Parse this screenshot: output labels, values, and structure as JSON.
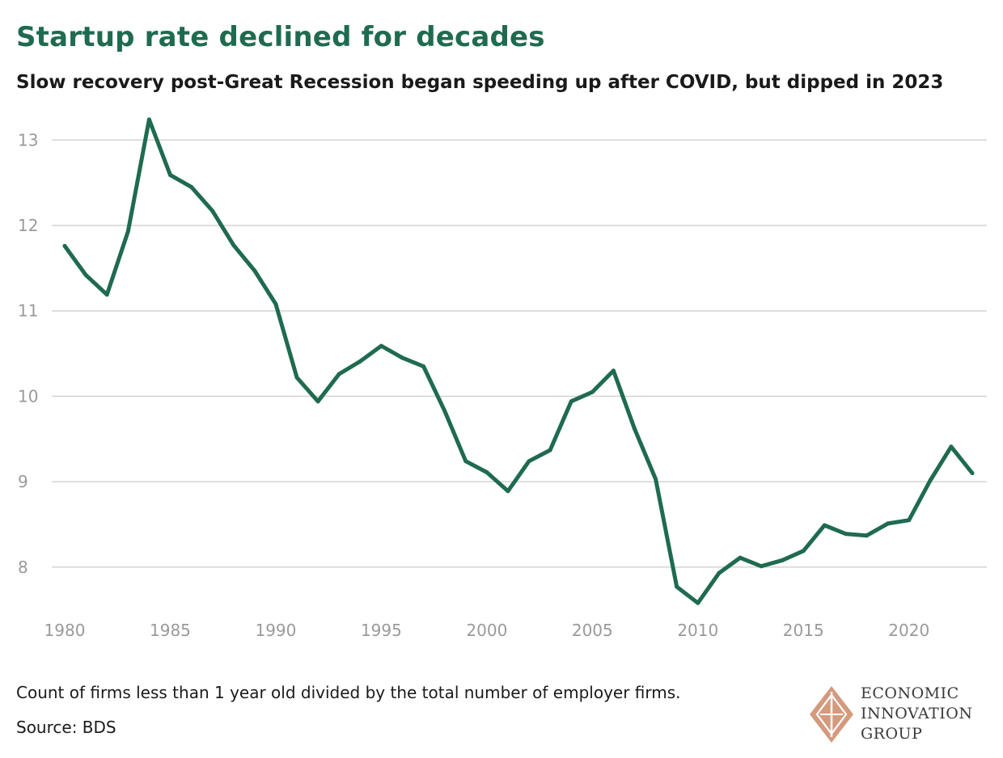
{
  "header": {
    "title": "Startup rate declined for decades",
    "subtitle": "Slow recovery post-Great Recession began speeding up after COVID, but dipped in 2023"
  },
  "footer": {
    "note": "Count of firms less than 1 year old divided by the total number of employer firms.",
    "source": "Source: BDS"
  },
  "logo": {
    "line1": "ECONOMIC",
    "line2": "INNOVATION",
    "line3": "GROUP",
    "color": "#d49a7e"
  },
  "chart_data": {
    "type": "line",
    "title": "Startup rate declined for decades",
    "subtitle": "Slow recovery post-Great Recession began speeding up after COVID, but dipped in 2023",
    "xlabel": "",
    "ylabel": "",
    "xlim": [
      1980,
      2023
    ],
    "ylim": [
      7.5,
      13.3
    ],
    "x_ticks": [
      1980,
      1985,
      1990,
      1995,
      2000,
      2005,
      2010,
      2015,
      2020
    ],
    "y_ticks": [
      8,
      9,
      10,
      11,
      12,
      13
    ],
    "grid": "horizontal",
    "line_color": "#1f6b4f",
    "series": [
      {
        "name": "",
        "x": [
          1980,
          1981,
          1982,
          1983,
          1984,
          1985,
          1986,
          1987,
          1988,
          1989,
          1990,
          1991,
          1992,
          1993,
          1994,
          1995,
          1996,
          1997,
          1998,
          1999,
          2000,
          2001,
          2002,
          2003,
          2004,
          2005,
          2006,
          2007,
          2008,
          2009,
          2010,
          2011,
          2012,
          2013,
          2014,
          2015,
          2016,
          2017,
          2018,
          2019,
          2020,
          2021,
          2022,
          2023
        ],
        "values": [
          11.76,
          11.42,
          11.19,
          11.93,
          13.24,
          12.59,
          12.45,
          12.17,
          11.77,
          11.47,
          11.08,
          10.22,
          9.94,
          10.26,
          10.41,
          10.59,
          10.45,
          10.35,
          9.83,
          9.24,
          9.11,
          8.89,
          9.24,
          9.37,
          9.94,
          10.05,
          10.3,
          9.62,
          9.03,
          7.77,
          7.58,
          7.93,
          8.11,
          8.01,
          8.08,
          8.19,
          8.49,
          8.39,
          8.37,
          8.51,
          8.55,
          9.01,
          9.41,
          9.1
        ]
      }
    ]
  }
}
